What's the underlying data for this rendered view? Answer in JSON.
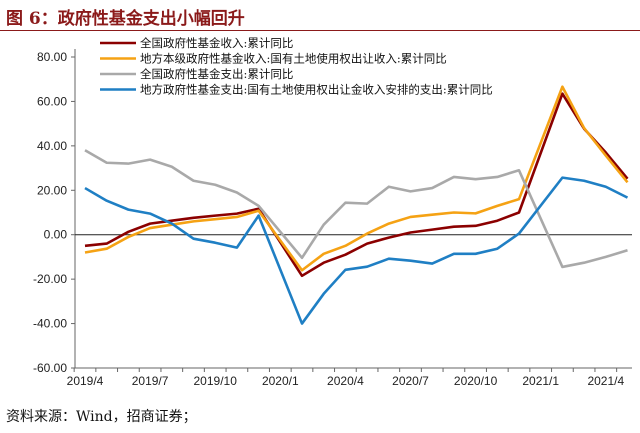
{
  "title": "图 6：政府性基金支出小幅回升",
  "source": "资料来源：Wind，招商证券；",
  "chart_data": {
    "type": "line",
    "title": "图 6：政府性基金支出小幅回升",
    "xlabel": "",
    "ylabel": "",
    "ylim": [
      -60,
      80
    ],
    "yticks": [
      "80.00",
      "60.00",
      "40.00",
      "20.00",
      "0.00",
      "-20.00",
      "-40.00",
      "-60.00"
    ],
    "ytick_values": [
      80,
      60,
      40,
      20,
      0,
      -20,
      -40,
      -60
    ],
    "xticks": [
      "2019/4",
      "2019/7",
      "2019/10",
      "2020/1",
      "2020/4",
      "2020/7",
      "2020/10",
      "2021/1",
      "2021/4"
    ],
    "xtick_month_index": [
      0,
      3,
      6,
      9,
      12,
      15,
      18,
      21,
      24
    ],
    "x": [
      "2019/4",
      "2019/5",
      "2019/6",
      "2019/7",
      "2019/8",
      "2019/9",
      "2019/10",
      "2019/11",
      "2019/12",
      "2020/2",
      "2020/3",
      "2020/4",
      "2020/5",
      "2020/6",
      "2020/7",
      "2020/8",
      "2020/9",
      "2020/10",
      "2020/11",
      "2020/12",
      "2021/2",
      "2021/3",
      "2021/4",
      "2021/5"
    ],
    "x_month_index": [
      0,
      1,
      2,
      3,
      4,
      5,
      6,
      7,
      8,
      10,
      11,
      12,
      13,
      14,
      15,
      16,
      17,
      18,
      19,
      20,
      22,
      23,
      24,
      25
    ],
    "legend_position": "top",
    "series": [
      {
        "name": "全国政府性基金收入:累计同比",
        "color": "#8b0000",
        "values": [
          -5,
          -4,
          1.3,
          5,
          6.3,
          7.6,
          8.6,
          9.5,
          11.7,
          -18.5,
          -12.6,
          -9,
          -4,
          -1.3,
          1,
          2.3,
          3.6,
          4,
          6.3,
          10,
          63.5,
          47.7,
          37,
          25.2
        ]
      },
      {
        "name": "地方本级政府性基金收入:国有土地使用权出让收入:累计同比",
        "color": "#f5a214",
        "values": [
          -8,
          -6.3,
          -1,
          3,
          4.5,
          6,
          7,
          8,
          10.8,
          -16,
          -8.6,
          -5,
          0.5,
          5,
          8,
          9,
          10,
          9.6,
          13,
          16,
          66.6,
          48,
          35.6,
          23.6
        ]
      },
      {
        "name": "全国政府性基金支出:累计同比",
        "color": "#a9a9a9",
        "values": [
          38,
          32.4,
          32,
          33.8,
          30.6,
          24.3,
          22.5,
          19,
          13,
          -10.4,
          4.5,
          14.4,
          14,
          21.6,
          19.5,
          21,
          26,
          25,
          26,
          29,
          -14.5,
          -12.6,
          -10,
          -7
        ]
      },
      {
        "name": "地方政府性基金支出:国有土地使用权出让金收入安排的支出:累计同比",
        "color": "#1f7fc4",
        "values": [
          21,
          15.3,
          11.3,
          9.5,
          5,
          -1.8,
          -3.6,
          -5.8,
          8.6,
          -40,
          -26.6,
          -15.8,
          -14.4,
          -10.8,
          -11.7,
          -13,
          -8.6,
          -8.6,
          -6.3,
          0.5,
          25.7,
          24.3,
          21.6,
          16.7
        ]
      }
    ]
  }
}
